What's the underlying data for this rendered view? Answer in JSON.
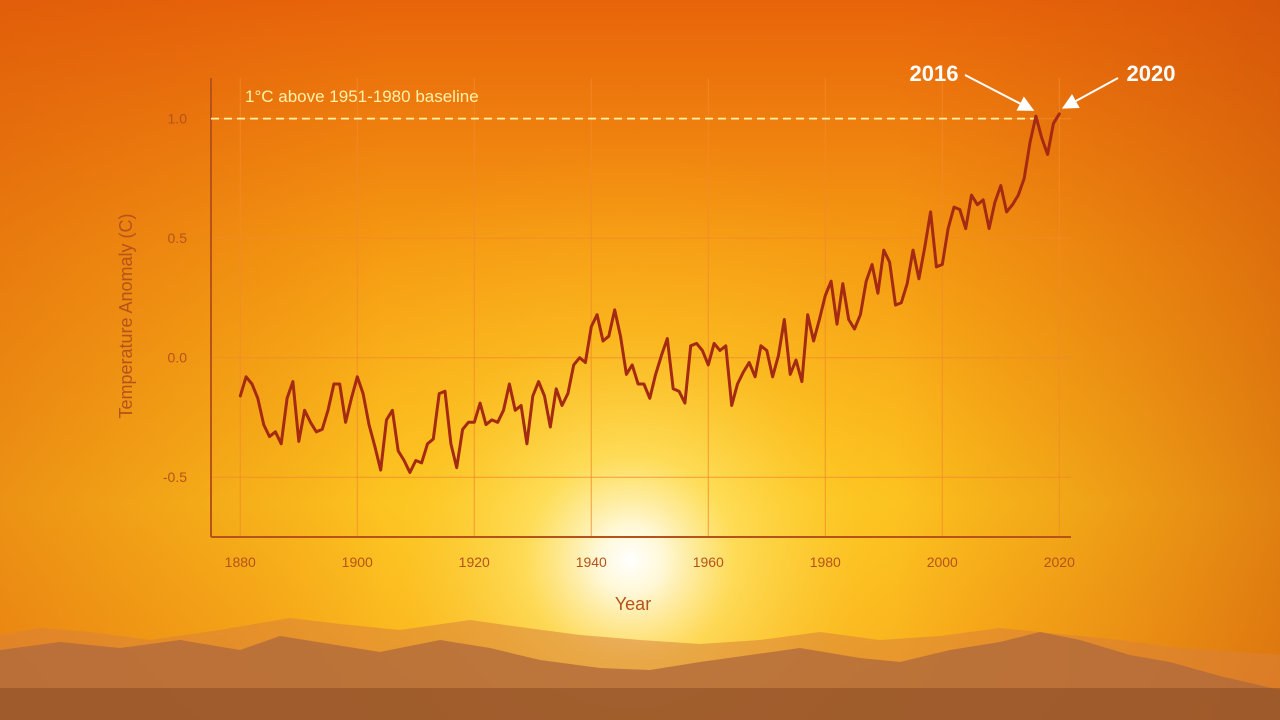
{
  "colors": {
    "line": "#a42a14",
    "grid": "#f28a2a",
    "axis": "#b5531a",
    "baseline": "#fff2a8",
    "callout": "#ffffff"
  },
  "chart_data": {
    "type": "line",
    "title": "",
    "xlabel": "Year",
    "ylabel": "Temperature Anomaly (C)",
    "xlim": [
      1875,
      2022
    ],
    "ylim": [
      -0.75,
      1.17
    ],
    "xticks": [
      "1880",
      "1900",
      "1920",
      "1940",
      "1960",
      "1980",
      "2000",
      "2020"
    ],
    "yticks": [
      "1.0",
      "0.5",
      "0.0",
      "-0.5"
    ],
    "grid": true,
    "baseline": {
      "y": 1.0,
      "label": "1°C above 1951-1980 baseline"
    },
    "annotations": [
      {
        "text": "2016",
        "x": 2016,
        "y": 1.01
      },
      {
        "text": "2020",
        "x": 2020,
        "y": 1.02
      }
    ],
    "series": [
      {
        "x": [
          1880,
          1881,
          1882,
          1883,
          1884,
          1885,
          1886,
          1887,
          1888,
          1889,
          1890,
          1891,
          1892,
          1893,
          1894,
          1895,
          1896,
          1897,
          1898,
          1899,
          1900,
          1901,
          1902,
          1903,
          1904,
          1905,
          1906,
          1907,
          1908,
          1909,
          1910,
          1911,
          1912,
          1913,
          1914,
          1915,
          1916,
          1917,
          1918,
          1919,
          1920,
          1921,
          1922,
          1923,
          1924,
          1925,
          1926,
          1927,
          1928,
          1929,
          1930,
          1931,
          1932,
          1933,
          1934,
          1935,
          1936,
          1937,
          1938,
          1939,
          1940,
          1941,
          1942,
          1943,
          1944,
          1945,
          1946,
          1947,
          1948,
          1949,
          1950,
          1951,
          1952,
          1953,
          1954,
          1955,
          1956,
          1957,
          1958,
          1959,
          1960,
          1961,
          1962,
          1963,
          1964,
          1965,
          1966,
          1967,
          1968,
          1969,
          1970,
          1971,
          1972,
          1973,
          1974,
          1975,
          1976,
          1977,
          1978,
          1979,
          1980,
          1981,
          1982,
          1983,
          1984,
          1985,
          1986,
          1987,
          1988,
          1989,
          1990,
          1991,
          1992,
          1993,
          1994,
          1995,
          1996,
          1997,
          1998,
          1999,
          2000,
          2001,
          2002,
          2003,
          2004,
          2005,
          2006,
          2007,
          2008,
          2009,
          2010,
          2011,
          2012,
          2013,
          2014,
          2015,
          2016,
          2017,
          2018,
          2019,
          2020
        ],
        "values": [
          -0.16,
          -0.08,
          -0.11,
          -0.17,
          -0.28,
          -0.33,
          -0.31,
          -0.36,
          -0.17,
          -0.1,
          -0.35,
          -0.22,
          -0.27,
          -0.31,
          -0.3,
          -0.22,
          -0.11,
          -0.11,
          -0.27,
          -0.17,
          -0.08,
          -0.15,
          -0.28,
          -0.37,
          -0.47,
          -0.26,
          -0.22,
          -0.39,
          -0.43,
          -0.48,
          -0.43,
          -0.44,
          -0.36,
          -0.34,
          -0.15,
          -0.14,
          -0.36,
          -0.46,
          -0.3,
          -0.27,
          -0.27,
          -0.19,
          -0.28,
          -0.26,
          -0.27,
          -0.22,
          -0.11,
          -0.22,
          -0.2,
          -0.36,
          -0.16,
          -0.1,
          -0.16,
          -0.29,
          -0.13,
          -0.2,
          -0.15,
          -0.03,
          0.0,
          -0.02,
          0.13,
          0.18,
          0.07,
          0.09,
          0.2,
          0.09,
          -0.07,
          -0.03,
          -0.11,
          -0.11,
          -0.17,
          -0.07,
          0.01,
          0.08,
          -0.13,
          -0.14,
          -0.19,
          0.05,
          0.06,
          0.03,
          -0.03,
          0.06,
          0.03,
          0.05,
          -0.2,
          -0.11,
          -0.06,
          -0.02,
          -0.08,
          0.05,
          0.03,
          -0.08,
          0.01,
          0.16,
          -0.07,
          -0.01,
          -0.1,
          0.18,
          0.07,
          0.16,
          0.26,
          0.32,
          0.14,
          0.31,
          0.16,
          0.12,
          0.18,
          0.32,
          0.39,
          0.27,
          0.45,
          0.4,
          0.22,
          0.23,
          0.31,
          0.45,
          0.33,
          0.46,
          0.61,
          0.38,
          0.39,
          0.54,
          0.63,
          0.62,
          0.54,
          0.68,
          0.64,
          0.66,
          0.54,
          0.65,
          0.72,
          0.61,
          0.64,
          0.68,
          0.75,
          0.9,
          1.01,
          0.92,
          0.85,
          0.98,
          1.02
        ]
      }
    ]
  }
}
